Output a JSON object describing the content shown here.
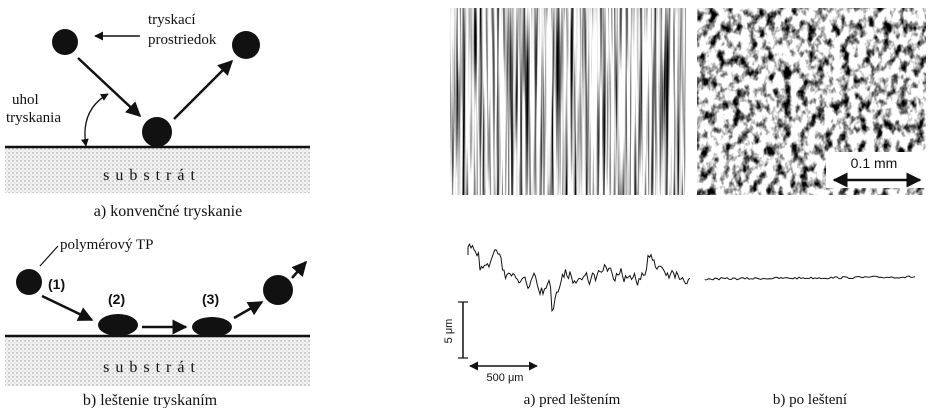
{
  "left": {
    "top": {
      "label_media_1": "tryskací",
      "label_media_2": "prostriedok",
      "label_angle_1": "uhol",
      "label_angle_2": "tryskania",
      "substrate": "substrát",
      "caption": "a) konvenčné tryskanie"
    },
    "bottom": {
      "label_media": "polymérový TP",
      "step_1": "(1)",
      "step_2": "(2)",
      "step_3": "(3)",
      "substrate": "substrát",
      "caption": "b) leštenie tryskaním"
    }
  },
  "right": {
    "scale_bar": "0.1 mm",
    "vertical_scale": "5 μm",
    "horizontal_scale": "500 μm",
    "caption_before": "a) pred leštením",
    "caption_after": "b) po leštení"
  }
}
